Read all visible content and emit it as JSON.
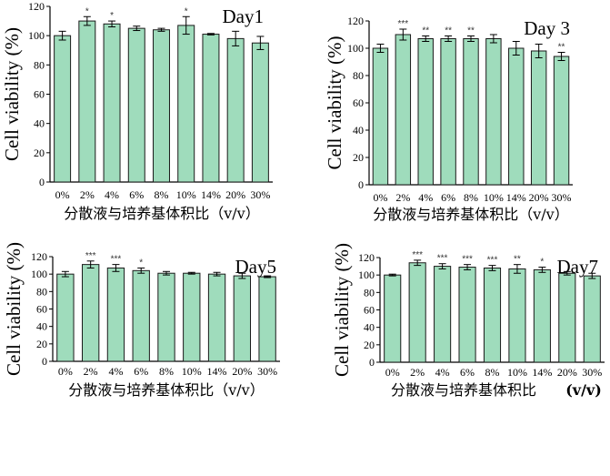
{
  "chart_data": [
    {
      "type": "bar",
      "title": "Day1",
      "xlabel": "分散液与培养基体积比（v/v）",
      "ylabel": "Cell viability (%)",
      "ylim": [
        0,
        120
      ],
      "yticks": [
        0,
        20,
        40,
        60,
        80,
        100,
        120
      ],
      "categories": [
        "0%",
        "2%",
        "4%",
        "6%",
        "8%",
        "10%",
        "14%",
        "20%",
        "30%"
      ],
      "values": [
        100,
        110,
        108,
        105,
        104,
        107,
        101,
        98,
        95
      ],
      "errors": [
        3,
        3,
        2,
        1.5,
        1,
        6,
        0.5,
        5,
        4.5
      ],
      "significance": [
        "",
        "*",
        "*",
        "",
        "",
        "*",
        "",
        "",
        ""
      ]
    },
    {
      "type": "bar",
      "title": "Day 3",
      "xlabel": "分散液与培养基体积比（v/v）",
      "ylabel": "Cell viability (%)",
      "ylim": [
        0,
        120
      ],
      "yticks": [
        0,
        20,
        40,
        60,
        80,
        100,
        120
      ],
      "categories": [
        "0%",
        "2%",
        "4%",
        "6%",
        "8%",
        "10%",
        "14%",
        "20%",
        "30%"
      ],
      "values": [
        100,
        110,
        107,
        107,
        107,
        107,
        100,
        98,
        94
      ],
      "errors": [
        3,
        4,
        2,
        2,
        2,
        3,
        5,
        5,
        3
      ],
      "significance": [
        "",
        "***",
        "**",
        "**",
        "**",
        "",
        "",
        "",
        "**"
      ]
    },
    {
      "type": "bar",
      "title": "Day5",
      "xlabel": "分散液与培养基体积比（v/v）",
      "ylabel": "Cell viability (%)",
      "ylim": [
        0,
        120
      ],
      "yticks": [
        0,
        20,
        40,
        60,
        80,
        100,
        120
      ],
      "categories": [
        "0%",
        "2%",
        "4%",
        "6%",
        "8%",
        "10%",
        "14%",
        "20%",
        "30%"
      ],
      "values": [
        100,
        111,
        107,
        104,
        101,
        101,
        100,
        98,
        97
      ],
      "errors": [
        3,
        4,
        4,
        3,
        2,
        1,
        2,
        3,
        1
      ],
      "significance": [
        "",
        "***",
        "***",
        "*",
        "",
        "",
        "",
        "",
        ""
      ]
    },
    {
      "type": "bar",
      "title": "Day7",
      "xlabel": "分散液与培养基体积比",
      "xlabel_unit": "(v/v)",
      "ylabel": "Cell viability (%)",
      "ylim": [
        0,
        120
      ],
      "yticks": [
        0,
        20,
        40,
        60,
        80,
        100,
        120
      ],
      "categories": [
        "0%",
        "2%",
        "4%",
        "6%",
        "8%",
        "10%",
        "14%",
        "20%",
        "30%"
      ],
      "values": [
        100,
        114,
        110,
        109,
        108,
        107,
        106,
        102,
        99
      ],
      "errors": [
        1,
        3,
        3,
        3,
        3,
        5,
        3,
        2,
        3
      ],
      "significance": [
        "",
        "***",
        "***",
        "***",
        "***",
        "**",
        "*",
        "",
        ""
      ]
    }
  ]
}
